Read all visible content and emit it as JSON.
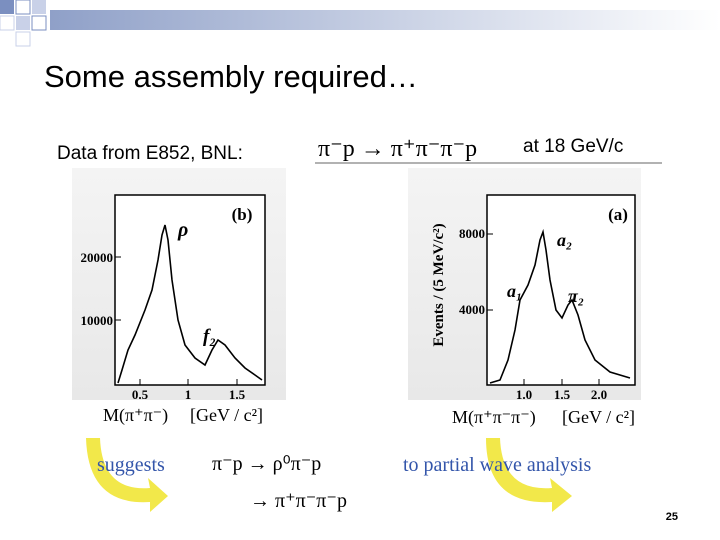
{
  "slide": {
    "title": "Some assembly required…",
    "data_source": "Data from E852, BNL:",
    "reaction_top": "π⁻p → π⁺π⁻π⁻p",
    "energy": "at 18 GeV/c",
    "figure_left": {
      "panel": "(b)",
      "yticks": [
        "20000",
        "10000"
      ],
      "xticks": [
        "0.5",
        "1",
        "1.5"
      ],
      "peaks": [
        "ρ",
        "f₂"
      ],
      "xlabel": "M(π⁺π⁻)",
      "unit": "[GeV / c²]"
    },
    "figure_right": {
      "panel": "(a)",
      "ylabel": "Events / (5 MeV/c²)",
      "yticks": [
        "8000",
        "4000"
      ],
      "xticks": [
        "1.0",
        "1.5",
        "2.0"
      ],
      "peaks": [
        "a₂",
        "a₁",
        "π₂"
      ],
      "xlabel": "M(π⁺π⁻π⁻)",
      "unit": "[GeV / c²]"
    },
    "suggests": "suggests",
    "reaction_bottom_1": "π⁻p → ρ⁰π⁻p",
    "reaction_bottom_2": "→ π⁺π⁻π⁻p",
    "right_note": "to partial wave analysis",
    "page_number": "25"
  }
}
